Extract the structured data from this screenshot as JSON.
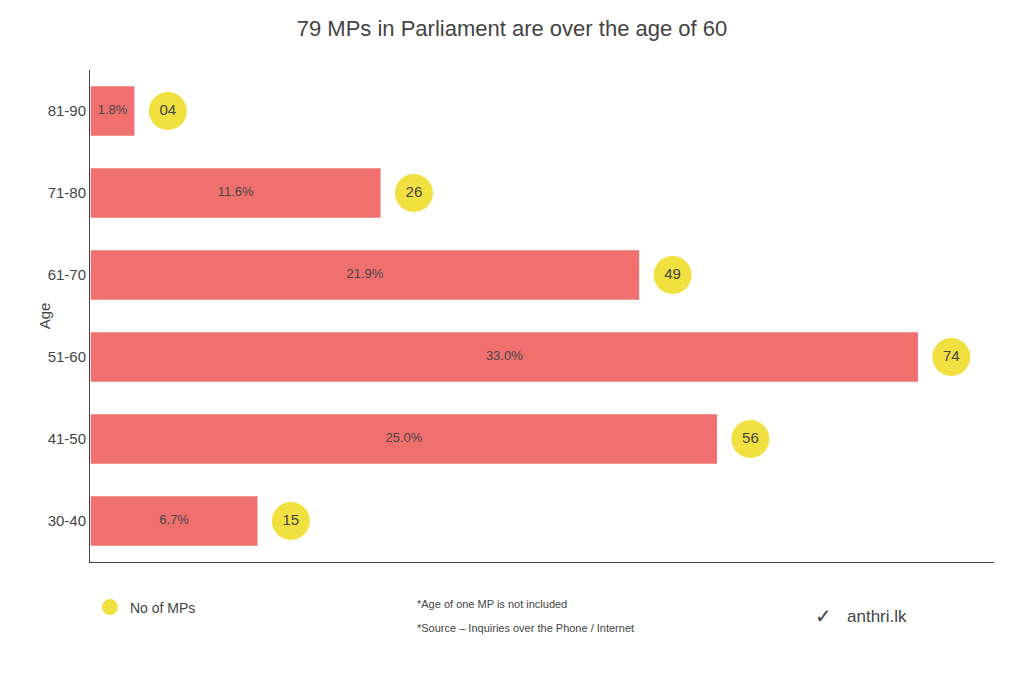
{
  "chart_data": {
    "type": "bar",
    "orientation": "horizontal",
    "title": "79 MPs in Parliament are over the age of 60",
    "ylabel": "Age",
    "categories": [
      "81-90",
      "71-80",
      "61-70",
      "51-60",
      "41-50",
      "30-40"
    ],
    "series": [
      {
        "type": "bar",
        "color": "#f07070",
        "values": [
          1.8,
          11.6,
          21.9,
          33.0,
          25.0,
          6.7
        ],
        "value_labels": [
          "1.8%",
          "11.6%",
          "21.9%",
          "33.0%",
          "25.0%",
          "6.7%"
        ]
      },
      {
        "name": "No of MPs",
        "type": "scatter",
        "marker": "circle",
        "color": "#f0e040",
        "counts": [
          4,
          26,
          49,
          74,
          56,
          15
        ],
        "count_labels": [
          "04",
          "26",
          "49",
          "74",
          "56",
          "15"
        ]
      }
    ],
    "xlim": [
      0,
      36
    ],
    "grid": false,
    "data_labels": true,
    "tick_labels": "y",
    "legend": "bottom",
    "annotations": [
      "*Age of one MP is not included",
      "*Source – Inquiries over the Phone / Internet",
      "✓",
      "anthri.lk"
    ]
  }
}
